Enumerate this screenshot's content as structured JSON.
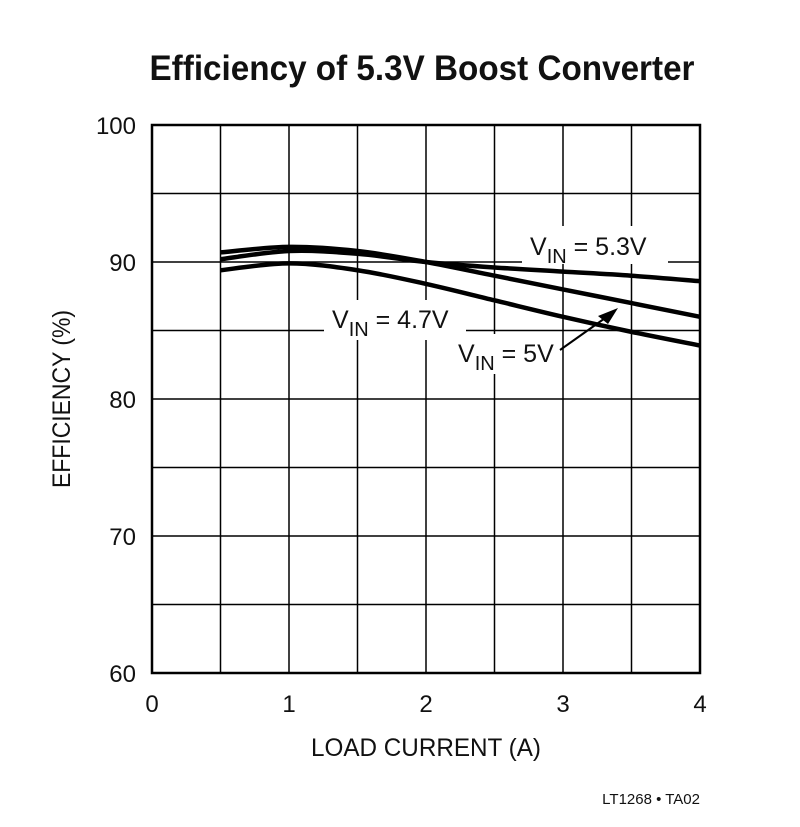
{
  "chart_data": {
    "type": "line",
    "title": "Efficiency of 5.3V Boost Converter",
    "xlabel": "LOAD CURRENT (A)",
    "ylabel": "EFFICIENCY (%)",
    "xlim": [
      0,
      4
    ],
    "ylim": [
      60,
      100
    ],
    "xticks": [
      0,
      1,
      2,
      3,
      4
    ],
    "yticks": [
      60,
      70,
      80,
      90,
      100
    ],
    "grid": true,
    "x": [
      0.5,
      1,
      1.5,
      2,
      2.5,
      3,
      3.5,
      4
    ],
    "series": [
      {
        "name": "VIN = 5.3V",
        "label_main": "V",
        "label_sub": "IN",
        "label_rest": " = 5.3V",
        "values": [
          90.2,
          90.8,
          90.6,
          90.0,
          89.6,
          89.3,
          89.0,
          88.6
        ]
      },
      {
        "name": "VIN = 5V",
        "label_main": "V",
        "label_sub": "IN",
        "label_rest": " = 5V",
        "values": [
          90.7,
          91.1,
          90.8,
          90.0,
          89.0,
          88.0,
          87.0,
          86.0
        ]
      },
      {
        "name": "VIN = 4.7V",
        "label_main": "V",
        "label_sub": "IN",
        "label_rest": " = 4.7V",
        "values": [
          89.4,
          89.9,
          89.4,
          88.4,
          87.2,
          86.0,
          84.9,
          83.9
        ]
      }
    ],
    "footnote": "LT1268 • TA02",
    "line_color": "#000000"
  }
}
